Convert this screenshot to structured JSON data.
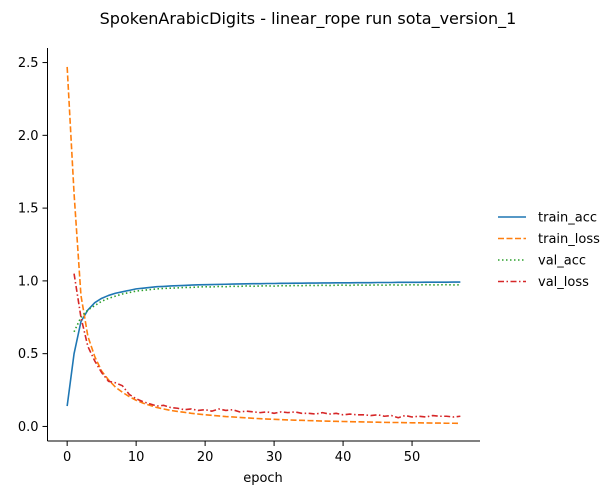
{
  "chart_data": {
    "type": "line",
    "title": "SpokenArabicDigits - linear_rope run sota_version_1",
    "xlabel": "epoch",
    "ylabel": "",
    "xlim": [
      -2.85,
      59.85
    ],
    "ylim": [
      -0.1,
      2.6
    ],
    "xticks": [
      0,
      10,
      20,
      30,
      40,
      50
    ],
    "yticks": [
      0.0,
      0.5,
      1.0,
      1.5,
      2.0,
      2.5
    ],
    "grid": false,
    "legend_position": "right",
    "series": [
      {
        "name": "train_acc",
        "color": "#1f77b4",
        "dash": "solid",
        "x": [
          0,
          1,
          2,
          3,
          4,
          5,
          6,
          7,
          8,
          9,
          10,
          11,
          12,
          13,
          14,
          15,
          16,
          17,
          18,
          19,
          20,
          21,
          22,
          23,
          24,
          25,
          26,
          27,
          28,
          29,
          30,
          31,
          32,
          33,
          34,
          35,
          36,
          37,
          38,
          39,
          40,
          41,
          42,
          43,
          44,
          45,
          46,
          47,
          48,
          49,
          50,
          51,
          52,
          53,
          54,
          55,
          56,
          57
        ],
        "values": [
          0.14,
          0.5,
          0.72,
          0.8,
          0.85,
          0.88,
          0.9,
          0.915,
          0.925,
          0.935,
          0.945,
          0.95,
          0.955,
          0.96,
          0.962,
          0.965,
          0.967,
          0.969,
          0.971,
          0.973,
          0.974,
          0.975,
          0.976,
          0.977,
          0.978,
          0.979,
          0.98,
          0.981,
          0.981,
          0.982,
          0.982,
          0.983,
          0.983,
          0.984,
          0.984,
          0.985,
          0.985,
          0.986,
          0.986,
          0.987,
          0.987,
          0.987,
          0.988,
          0.988,
          0.988,
          0.989,
          0.989,
          0.989,
          0.99,
          0.99,
          0.99,
          0.99,
          0.991,
          0.991,
          0.991,
          0.991,
          0.992,
          0.992
        ]
      },
      {
        "name": "train_loss",
        "color": "#ff7f0e",
        "dash": "dashed",
        "x": [
          0,
          1,
          2,
          3,
          4,
          5,
          6,
          7,
          8,
          9,
          10,
          11,
          12,
          13,
          14,
          15,
          16,
          17,
          18,
          19,
          20,
          21,
          22,
          23,
          24,
          25,
          26,
          27,
          28,
          29,
          30,
          31,
          32,
          33,
          34,
          35,
          36,
          37,
          38,
          39,
          40,
          41,
          42,
          43,
          44,
          45,
          46,
          47,
          48,
          49,
          50,
          51,
          52,
          53,
          54,
          55,
          56,
          57
        ],
        "values": [
          2.47,
          1.6,
          0.9,
          0.62,
          0.48,
          0.38,
          0.32,
          0.27,
          0.235,
          0.205,
          0.18,
          0.16,
          0.145,
          0.13,
          0.12,
          0.11,
          0.103,
          0.097,
          0.09,
          0.085,
          0.08,
          0.076,
          0.072,
          0.068,
          0.065,
          0.062,
          0.059,
          0.056,
          0.053,
          0.051,
          0.049,
          0.047,
          0.045,
          0.043,
          0.042,
          0.04,
          0.039,
          0.037,
          0.036,
          0.035,
          0.034,
          0.033,
          0.032,
          0.031,
          0.03,
          0.029,
          0.028,
          0.027,
          0.027,
          0.026,
          0.025,
          0.025,
          0.024,
          0.023,
          0.023,
          0.022,
          0.022,
          0.021
        ]
      },
      {
        "name": "val_acc",
        "color": "#2ca02c",
        "dash": "dotted",
        "x": [
          1,
          2,
          3,
          4,
          5,
          6,
          7,
          8,
          9,
          10,
          11,
          12,
          13,
          14,
          15,
          16,
          17,
          18,
          19,
          20,
          21,
          22,
          23,
          24,
          25,
          26,
          27,
          28,
          29,
          30,
          31,
          32,
          33,
          34,
          35,
          36,
          37,
          38,
          39,
          40,
          41,
          42,
          43,
          44,
          45,
          46,
          47,
          48,
          49,
          50,
          51,
          52,
          53,
          54,
          55,
          56,
          57
        ],
        "values": [
          0.65,
          0.75,
          0.8,
          0.83,
          0.86,
          0.88,
          0.895,
          0.91,
          0.92,
          0.93,
          0.935,
          0.94,
          0.945,
          0.948,
          0.95,
          0.952,
          0.955,
          0.955,
          0.958,
          0.96,
          0.958,
          0.962,
          0.96,
          0.963,
          0.962,
          0.965,
          0.963,
          0.965,
          0.966,
          0.964,
          0.967,
          0.966,
          0.968,
          0.967,
          0.969,
          0.968,
          0.97,
          0.968,
          0.97,
          0.971,
          0.969,
          0.972,
          0.97,
          0.971,
          0.972,
          0.97,
          0.973,
          0.971,
          0.972,
          0.973,
          0.972,
          0.974,
          0.972,
          0.973,
          0.974,
          0.972,
          0.973
        ]
      },
      {
        "name": "val_loss",
        "color": "#d62728",
        "dash": "dashdot",
        "x": [
          1,
          2,
          3,
          4,
          5,
          6,
          7,
          8,
          9,
          10,
          11,
          12,
          13,
          14,
          15,
          16,
          17,
          18,
          19,
          20,
          21,
          22,
          23,
          24,
          25,
          26,
          27,
          28,
          29,
          30,
          31,
          32,
          33,
          34,
          35,
          36,
          37,
          38,
          39,
          40,
          41,
          42,
          43,
          44,
          45,
          46,
          47,
          48,
          49,
          50,
          51,
          52,
          53,
          54,
          55,
          56,
          57
        ],
        "values": [
          1.05,
          0.75,
          0.55,
          0.45,
          0.37,
          0.31,
          0.3,
          0.28,
          0.22,
          0.19,
          0.17,
          0.155,
          0.14,
          0.145,
          0.13,
          0.125,
          0.115,
          0.12,
          0.11,
          0.115,
          0.105,
          0.12,
          0.11,
          0.115,
          0.1,
          0.105,
          0.1,
          0.095,
          0.1,
          0.09,
          0.1,
          0.095,
          0.1,
          0.09,
          0.09,
          0.085,
          0.095,
          0.085,
          0.09,
          0.08,
          0.085,
          0.08,
          0.08,
          0.075,
          0.08,
          0.07,
          0.075,
          0.06,
          0.075,
          0.065,
          0.07,
          0.065,
          0.075,
          0.07,
          0.07,
          0.065,
          0.07
        ]
      }
    ]
  }
}
